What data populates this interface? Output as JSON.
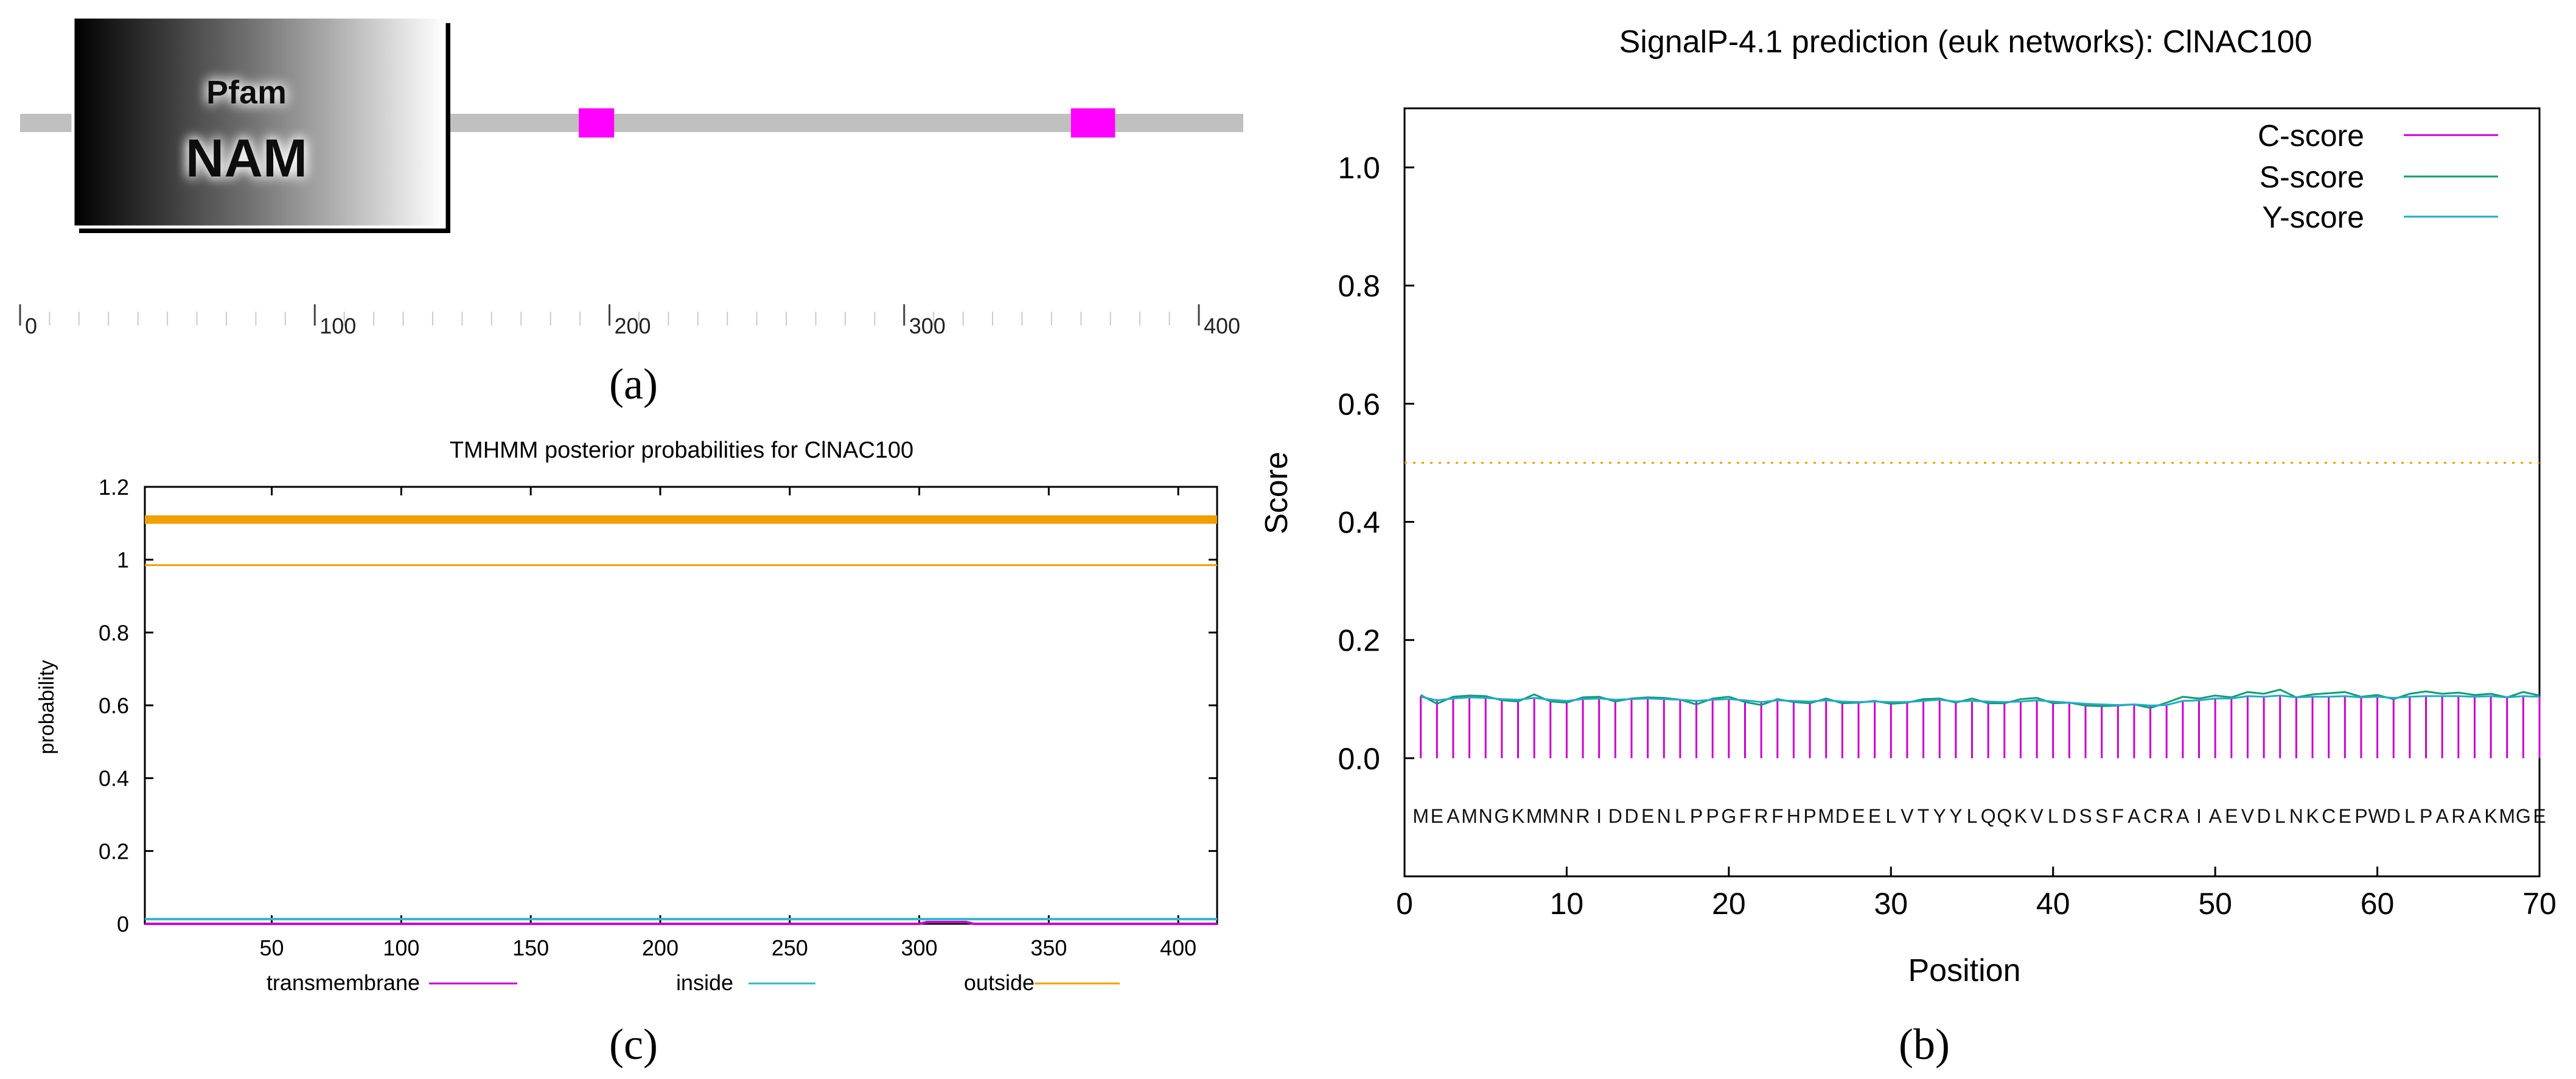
{
  "panels": {
    "a": {
      "caption": "(a)",
      "domain_label_top": "Pfam",
      "domain_label_main": "NAM",
      "protein_length": 410,
      "domain_range": [
        18,
        140
      ],
      "motifs": [
        [
          190,
          202
        ],
        [
          357,
          372
        ]
      ],
      "ticks": [
        0,
        100,
        200,
        300,
        400
      ],
      "tick_labels": [
        "0",
        "100",
        "200",
        "300",
        "400"
      ],
      "colors": {
        "backbone": "#c0c0c0",
        "motif": "#ff00ff",
        "domain_dark": "#000000",
        "domain_light": "#ffffff"
      }
    },
    "b": {
      "caption": "(b)"
    },
    "c": {
      "caption": "(c)"
    }
  },
  "chart_data": [
    {
      "type": "line",
      "panel": "c",
      "title": "TMHMM posterior probabilities for ClNAC100",
      "xlabel": "",
      "ylabel": "probability",
      "xlim": [
        1,
        415
      ],
      "ylim": [
        0,
        1.2
      ],
      "x_ticks": [
        50,
        100,
        150,
        200,
        250,
        300,
        350,
        400
      ],
      "x_tick_labels": [
        "50",
        "100",
        "150",
        "200",
        "250",
        "300",
        "350",
        "400"
      ],
      "y_ticks": [
        0,
        0.2,
        0.4,
        0.6,
        0.8,
        1,
        1.2
      ],
      "y_tick_labels": [
        "0",
        "0.2",
        "0.4",
        "0.6",
        "0.8",
        "1",
        "1.2"
      ],
      "legend": [
        "transmembrane",
        "inside",
        "outside"
      ],
      "series": [
        {
          "name": "outside (bar)",
          "x": [
            1,
            415
          ],
          "values": [
            1.11,
            1.11
          ],
          "color": "#f0a000"
        },
        {
          "name": "outside",
          "x": [
            1,
            415
          ],
          "values": [
            0.985,
            0.985
          ],
          "color": "#f0a000"
        },
        {
          "name": "inside",
          "x": [
            1,
            415
          ],
          "values": [
            0.013,
            0.013
          ],
          "color": "#30b8cc"
        },
        {
          "name": "transmembrane",
          "x": [
            1,
            300,
            303,
            318,
            321,
            415
          ],
          "values": [
            0,
            0,
            0.005,
            0.005,
            0,
            0
          ],
          "color": "#cc00cc"
        }
      ],
      "legend_colors": [
        "#cc00cc",
        "#30b8cc",
        "#f0a000"
      ]
    },
    {
      "type": "line",
      "panel": "b",
      "title": "SignalP-4.1 prediction (euk networks): ClNAC100",
      "xlabel": "Position",
      "ylabel": "Score",
      "xlim": [
        0,
        70
      ],
      "ylim": [
        -0.2,
        1.1
      ],
      "x_ticks": [
        0,
        10,
        20,
        30,
        40,
        50,
        60,
        70
      ],
      "x_tick_labels": [
        "0",
        "10",
        "20",
        "30",
        "40",
        "50",
        "60",
        "70"
      ],
      "y_ticks": [
        0,
        0.2,
        0.4,
        0.6,
        0.8,
        1.0
      ],
      "y_tick_labels": [
        "0.0",
        "0.2",
        "0.4",
        "0.6",
        "0.8",
        "1.0"
      ],
      "threshold": 0.5,
      "legend": [
        "C-score",
        "S-score",
        "Y-score"
      ],
      "legend_colors": [
        "#cc00cc",
        "#119e6f",
        "#22aacc"
      ],
      "sequence": [
        "M",
        "E",
        "A",
        "M",
        "N",
        "G",
        "K",
        "M",
        "M",
        "N",
        "R",
        "I",
        "D",
        "D",
        "E",
        "N",
        "L",
        "P",
        "P",
        "G",
        "F",
        "R",
        "F",
        "H",
        "P",
        "M",
        "D",
        "E",
        "E",
        "L",
        "V",
        "T",
        "Y",
        "Y",
        "L",
        "Q",
        "Q",
        "K",
        "V",
        "L",
        "D",
        "S",
        "S",
        "F",
        "A",
        "C",
        "R",
        "A",
        "I",
        "A",
        "E",
        "V",
        "D",
        "L",
        "N",
        "K",
        "C",
        "E",
        "P",
        "W",
        "D",
        "L",
        "P",
        "A",
        "R",
        "A",
        "K",
        "M",
        "G",
        "E"
      ],
      "positions": [
        1,
        2,
        3,
        4,
        5,
        6,
        7,
        8,
        9,
        10,
        11,
        12,
        13,
        14,
        15,
        16,
        17,
        18,
        19,
        20,
        21,
        22,
        23,
        24,
        25,
        26,
        27,
        28,
        29,
        30,
        31,
        32,
        33,
        34,
        35,
        36,
        37,
        38,
        39,
        40,
        41,
        42,
        43,
        44,
        45,
        46,
        47,
        48,
        49,
        50,
        51,
        52,
        53,
        54,
        55,
        56,
        57,
        58,
        59,
        60,
        61,
        62,
        63,
        64,
        65,
        66,
        67,
        68,
        69,
        70
      ],
      "series": [
        {
          "name": "C-score",
          "values": [
            0.105,
            0.1,
            0.102,
            0.104,
            0.103,
            0.101,
            0.1,
            0.103,
            0.1,
            0.098,
            0.1,
            0.101,
            0.099,
            0.101,
            0.1,
            0.1,
            0.099,
            0.098,
            0.1,
            0.1,
            0.099,
            0.096,
            0.098,
            0.097,
            0.097,
            0.099,
            0.096,
            0.096,
            0.097,
            0.095,
            0.096,
            0.098,
            0.099,
            0.097,
            0.098,
            0.097,
            0.096,
            0.097,
            0.098,
            0.097,
            0.095,
            0.093,
            0.092,
            0.091,
            0.092,
            0.09,
            0.09,
            0.097,
            0.098,
            0.1,
            0.102,
            0.104,
            0.104,
            0.105,
            0.104,
            0.105,
            0.104,
            0.104,
            0.103,
            0.104,
            0.103,
            0.104,
            0.105,
            0.105,
            0.105,
            0.104,
            0.105,
            0.104,
            0.104,
            0.104
          ]
        },
        {
          "name": "S-score",
          "values": [
            0.107,
            0.092,
            0.104,
            0.106,
            0.105,
            0.098,
            0.096,
            0.108,
            0.096,
            0.094,
            0.103,
            0.104,
            0.096,
            0.101,
            0.103,
            0.102,
            0.099,
            0.091,
            0.101,
            0.104,
            0.095,
            0.09,
            0.1,
            0.095,
            0.093,
            0.101,
            0.093,
            0.094,
            0.097,
            0.092,
            0.094,
            0.1,
            0.101,
            0.094,
            0.101,
            0.093,
            0.093,
            0.1,
            0.102,
            0.093,
            0.094,
            0.089,
            0.088,
            0.089,
            0.091,
            0.085,
            0.094,
            0.104,
            0.101,
            0.106,
            0.103,
            0.112,
            0.109,
            0.116,
            0.103,
            0.108,
            0.11,
            0.112,
            0.104,
            0.107,
            0.1,
            0.109,
            0.113,
            0.109,
            0.111,
            0.107,
            0.109,
            0.103,
            0.112,
            0.106
          ]
        },
        {
          "name": "Y-score",
          "values": [
            0.104,
            0.098,
            0.101,
            0.103,
            0.102,
            0.1,
            0.099,
            0.102,
            0.099,
            0.097,
            0.1,
            0.101,
            0.099,
            0.1,
            0.101,
            0.1,
            0.099,
            0.097,
            0.099,
            0.1,
            0.098,
            0.095,
            0.098,
            0.097,
            0.096,
            0.098,
            0.096,
            0.095,
            0.096,
            0.095,
            0.095,
            0.097,
            0.099,
            0.096,
            0.097,
            0.096,
            0.095,
            0.096,
            0.098,
            0.096,
            0.094,
            0.092,
            0.091,
            0.09,
            0.091,
            0.089,
            0.09,
            0.097,
            0.098,
            0.101,
            0.101,
            0.105,
            0.104,
            0.106,
            0.103,
            0.104,
            0.104,
            0.105,
            0.103,
            0.104,
            0.102,
            0.104,
            0.105,
            0.105,
            0.105,
            0.104,
            0.105,
            0.103,
            0.105,
            0.104
          ]
        }
      ],
      "threshold_color": "#f0a000"
    }
  ]
}
